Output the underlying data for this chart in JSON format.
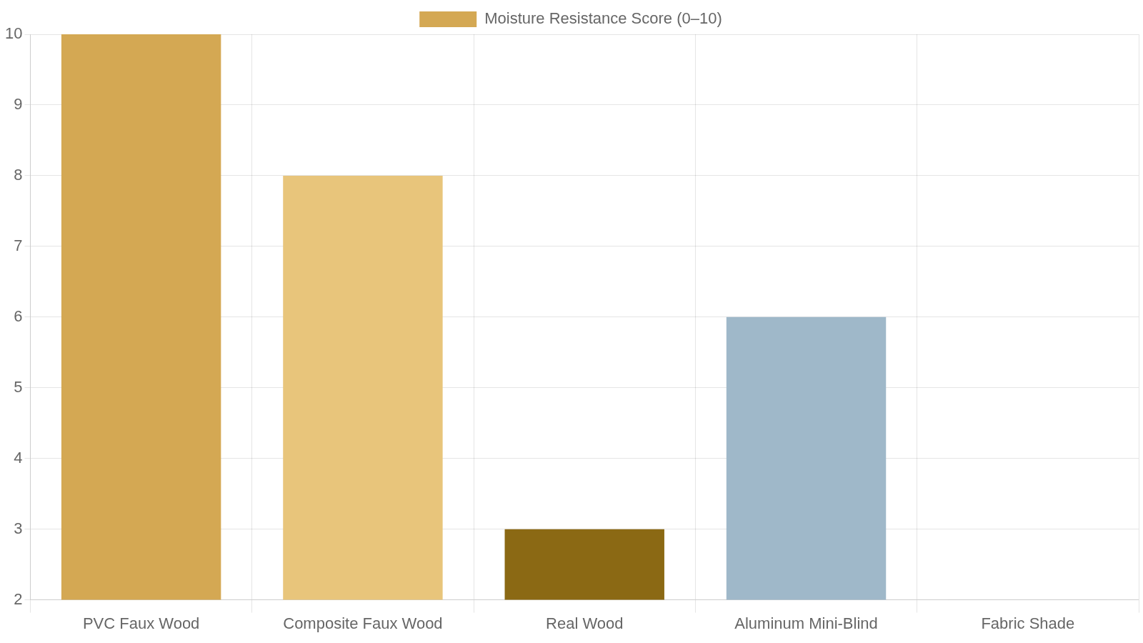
{
  "chart_data": {
    "type": "bar",
    "categories": [
      "PVC Faux Wood",
      "Composite Faux Wood",
      "Real Wood",
      "Aluminum Mini-Blind",
      "Fabric Shade"
    ],
    "series": [
      {
        "name": "Moisture Resistance Score (0–10)",
        "values": [
          10,
          8,
          3,
          6,
          2
        ],
        "colors": [
          "#d4a853",
          "#e8c57b",
          "#8b6914",
          "#9fb8c9",
          "#c9c9c9"
        ]
      }
    ],
    "ylim": [
      2,
      10
    ],
    "yticks": [
      2,
      3,
      4,
      5,
      6,
      7,
      8,
      9,
      10
    ],
    "grid": true,
    "legend": "top"
  }
}
